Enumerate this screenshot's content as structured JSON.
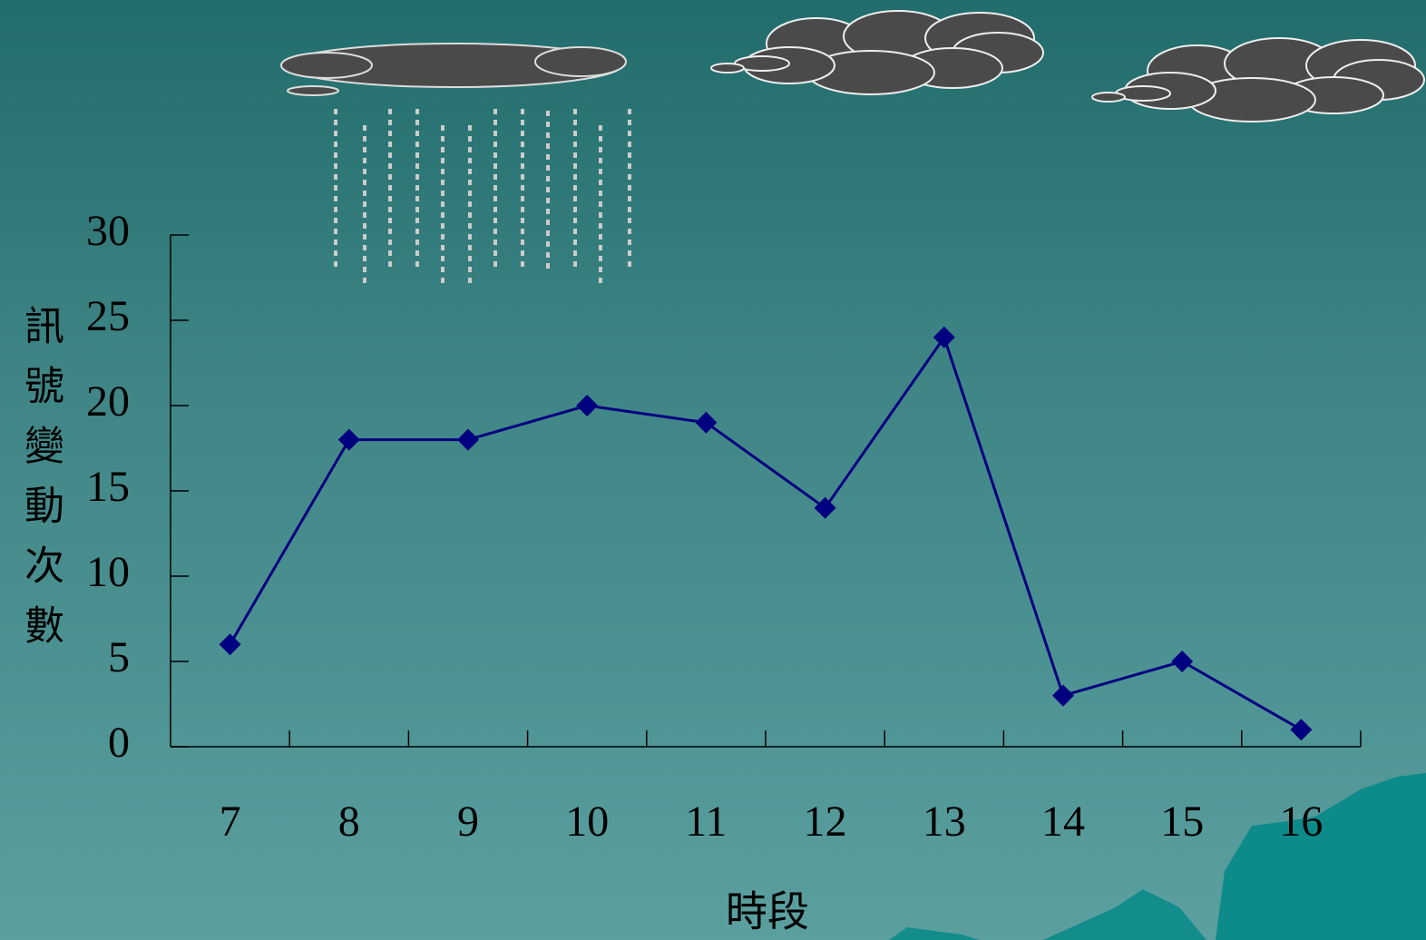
{
  "chart_data": {
    "type": "line",
    "x_label": "時段",
    "y_label": "訊號變動次數",
    "categories": [
      "7",
      "8",
      "9",
      "10",
      "11",
      "12",
      "13",
      "14",
      "15",
      "16"
    ],
    "series": [
      {
        "name": "訊號變動次數",
        "color": "#000080",
        "values": [
          6,
          18,
          18,
          20,
          19,
          14,
          24,
          3,
          5,
          1
        ]
      }
    ],
    "ylim": [
      0,
      30
    ],
    "yticks": [
      0,
      5,
      10,
      15,
      20,
      25,
      30
    ]
  }
}
